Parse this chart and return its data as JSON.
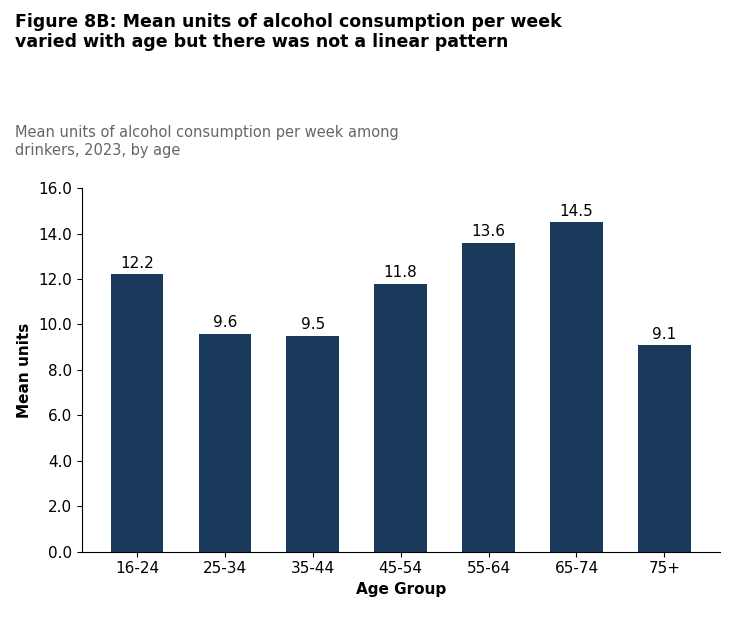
{
  "title_bold": "Figure 8B: Mean units of alcohol consumption per week\nvaried with age but there was not a linear pattern",
  "subtitle": "Mean units of alcohol consumption per week among\ndrinkers, 2023, by age",
  "categories": [
    "16-24",
    "25-34",
    "35-44",
    "45-54",
    "55-64",
    "65-74",
    "75+"
  ],
  "values": [
    12.2,
    9.6,
    9.5,
    11.8,
    13.6,
    14.5,
    9.1
  ],
  "bar_color": "#1a3a5c",
  "ylabel": "Mean units",
  "xlabel": "Age Group",
  "ylim": [
    0,
    16.0
  ],
  "yticks": [
    0.0,
    2.0,
    4.0,
    6.0,
    8.0,
    10.0,
    12.0,
    14.0,
    16.0
  ],
  "background_color": "#ffffff",
  "title_fontsize": 12.5,
  "subtitle_fontsize": 10.5,
  "label_fontsize": 11,
  "tick_fontsize": 11,
  "bar_label_fontsize": 11,
  "subtitle_color": "#666666"
}
